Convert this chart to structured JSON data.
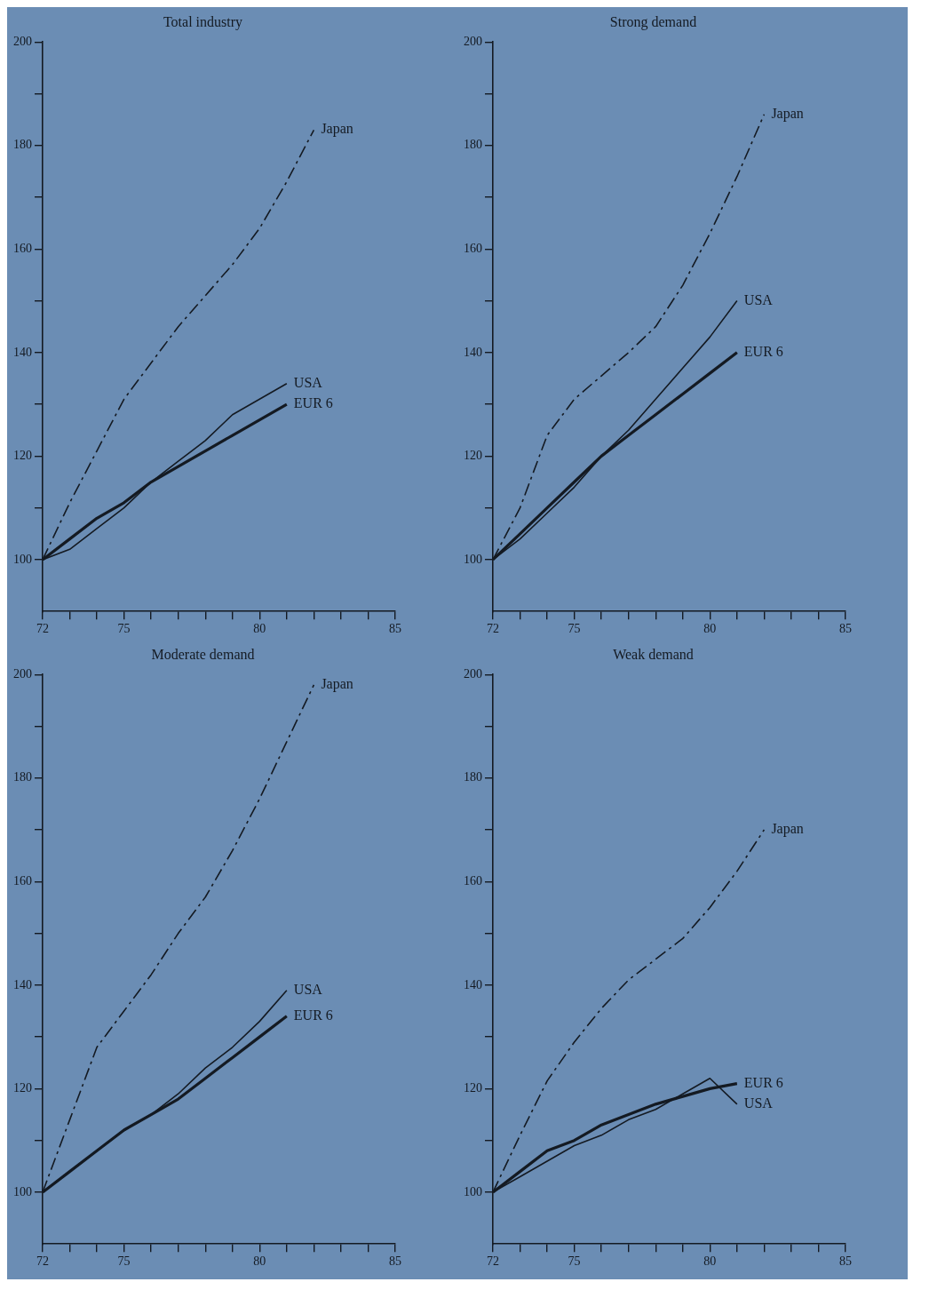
{
  "chart_data": [
    {
      "type": "line",
      "title": "Total industry",
      "x": [
        72,
        73,
        74,
        75,
        76,
        77,
        78,
        79,
        80,
        81,
        82
      ],
      "series": [
        {
          "name": "Japan",
          "color": "#141a22",
          "line_style": "dashed",
          "values": [
            100,
            111,
            121,
            131,
            138,
            145,
            151,
            157,
            164,
            173,
            183
          ]
        },
        {
          "name": "USA",
          "color": "#141a22",
          "line_style": "solid",
          "values": [
            100,
            102,
            106,
            110,
            115,
            119,
            123,
            128,
            131,
            134,
            null
          ]
        },
        {
          "name": "EUR 6",
          "color": "#141a22",
          "line_style": "solid",
          "values": [
            100,
            104,
            108,
            111,
            115,
            118,
            121,
            124,
            127,
            130,
            null
          ]
        }
      ],
      "xlim": [
        72,
        85
      ],
      "xticks": [
        72,
        {
          "value": 73,
          "label": null
        },
        {
          "value": 74,
          "label": null
        },
        75,
        {
          "value": 76,
          "label": null
        },
        {
          "value": 77,
          "label": null
        },
        {
          "value": 78,
          "label": null
        },
        {
          "value": 79,
          "label": null
        },
        80,
        {
          "value": 81,
          "label": null
        },
        {
          "value": 82,
          "label": null
        },
        {
          "value": 83,
          "label": null
        },
        {
          "value": 84,
          "label": null
        },
        85
      ],
      "ylim": [
        90,
        200
      ],
      "yticks": [
        100,
        {
          "value": 110,
          "label": null
        },
        120,
        {
          "value": 130,
          "label": null
        },
        140,
        {
          "value": 150,
          "label": null
        },
        160,
        {
          "value": 170,
          "label": null
        },
        180,
        {
          "value": 190,
          "label": null
        },
        200
      ],
      "grid": false,
      "legend": false,
      "marker": "none"
    },
    {
      "type": "line",
      "title": "Strong demand",
      "x": [
        72,
        73,
        74,
        75,
        76,
        77,
        78,
        79,
        80,
        81,
        82
      ],
      "series": [
        {
          "name": "Japan",
          "color": "#141a22",
          "line_style": "dashed",
          "values": [
            100,
            110,
            124,
            131,
            135.5,
            140,
            145,
            153,
            163,
            174,
            186
          ]
        },
        {
          "name": "USA",
          "color": "#141a22",
          "line_style": "solid",
          "values": [
            100,
            104,
            109,
            114,
            120,
            125,
            131,
            137,
            143,
            150,
            null
          ]
        },
        {
          "name": "EUR 6",
          "color": "#141a22",
          "line_style": "solid",
          "values": [
            100,
            105,
            110,
            115,
            120,
            124,
            128,
            132,
            136,
            140,
            null
          ]
        }
      ],
      "xlim": [
        72,
        85
      ],
      "xticks": [
        72,
        {
          "value": 73,
          "label": null
        },
        {
          "value": 74,
          "label": null
        },
        75,
        {
          "value": 76,
          "label": null
        },
        {
          "value": 77,
          "label": null
        },
        {
          "value": 78,
          "label": null
        },
        {
          "value": 79,
          "label": null
        },
        80,
        {
          "value": 81,
          "label": null
        },
        {
          "value": 82,
          "label": null
        },
        {
          "value": 83,
          "label": null
        },
        {
          "value": 84,
          "label": null
        },
        85
      ],
      "ylim": [
        90,
        200
      ],
      "yticks": [
        100,
        {
          "value": 110,
          "label": null
        },
        120,
        {
          "value": 130,
          "label": null
        },
        140,
        {
          "value": 150,
          "label": null
        },
        160,
        {
          "value": 170,
          "label": null
        },
        180,
        {
          "value": 190,
          "label": null
        },
        200
      ],
      "grid": false,
      "legend": false,
      "marker": "none"
    },
    {
      "type": "line",
      "title": "Moderate demand",
      "x": [
        72,
        73,
        74,
        75,
        76,
        77,
        78,
        79,
        80,
        81,
        82
      ],
      "series": [
        {
          "name": "Japan",
          "color": "#141a22",
          "line_style": "dashed",
          "values": [
            100,
            114,
            128,
            135,
            142,
            150,
            157,
            166,
            176,
            187,
            198
          ]
        },
        {
          "name": "USA",
          "color": "#141a22",
          "line_style": "solid",
          "values": [
            100,
            104,
            108,
            112,
            115,
            119,
            124,
            128,
            133,
            139,
            null
          ]
        },
        {
          "name": "EUR 6",
          "color": "#141a22",
          "line_style": "solid",
          "values": [
            100,
            104,
            108,
            112,
            115,
            118,
            122,
            126,
            130,
            134,
            null
          ]
        }
      ],
      "xlim": [
        72,
        85
      ],
      "xticks": [
        72,
        {
          "value": 73,
          "label": null
        },
        {
          "value": 74,
          "label": null
        },
        75,
        {
          "value": 76,
          "label": null
        },
        {
          "value": 77,
          "label": null
        },
        {
          "value": 78,
          "label": null
        },
        {
          "value": 79,
          "label": null
        },
        80,
        {
          "value": 81,
          "label": null
        },
        {
          "value": 82,
          "label": null
        },
        {
          "value": 83,
          "label": null
        },
        {
          "value": 84,
          "label": null
        },
        85
      ],
      "ylim": [
        90,
        200
      ],
      "yticks": [
        100,
        {
          "value": 110,
          "label": null
        },
        120,
        {
          "value": 130,
          "label": null
        },
        140,
        {
          "value": 150,
          "label": null
        },
        160,
        {
          "value": 170,
          "label": null
        },
        180,
        {
          "value": 190,
          "label": null
        },
        200
      ],
      "grid": false,
      "legend": false,
      "marker": "none"
    },
    {
      "type": "line",
      "title": "Weak demand",
      "x": [
        72,
        73,
        74,
        75,
        76,
        77,
        78,
        79,
        80,
        81,
        82
      ],
      "series": [
        {
          "name": "Japan",
          "color": "#141a22",
          "line_style": "dashed",
          "values": [
            100,
            111,
            121.5,
            129,
            135.5,
            141,
            145,
            149,
            155,
            162,
            170
          ]
        },
        {
          "name": "USA",
          "color": "#141a22",
          "line_style": "solid",
          "values": [
            100,
            103,
            106,
            109,
            111,
            114,
            116,
            119,
            122,
            117,
            null
          ]
        },
        {
          "name": "EUR 6",
          "color": "#141a22",
          "line_style": "solid",
          "values": [
            100,
            104,
            108,
            110,
            113,
            115,
            117,
            118.5,
            120,
            121,
            null
          ]
        }
      ],
      "xlim": [
        72,
        85
      ],
      "xticks": [
        72,
        {
          "value": 73,
          "label": null
        },
        {
          "value": 74,
          "label": null
        },
        75,
        {
          "value": 76,
          "label": null
        },
        {
          "value": 77,
          "label": null
        },
        {
          "value": 78,
          "label": null
        },
        {
          "value": 79,
          "label": null
        },
        80,
        {
          "value": 81,
          "label": null
        },
        {
          "value": 82,
          "label": null
        },
        {
          "value": 83,
          "label": null
        },
        {
          "value": 84,
          "label": null
        },
        85
      ],
      "ylim": [
        90,
        200
      ],
      "yticks": [
        100,
        {
          "value": 110,
          "label": null
        },
        120,
        {
          "value": 130,
          "label": null
        },
        140,
        {
          "value": 150,
          "label": null
        },
        160,
        {
          "value": 170,
          "label": null
        },
        180,
        {
          "value": 190,
          "label": null
        },
        200
      ],
      "grid": false,
      "legend": false,
      "marker": "none"
    }
  ]
}
